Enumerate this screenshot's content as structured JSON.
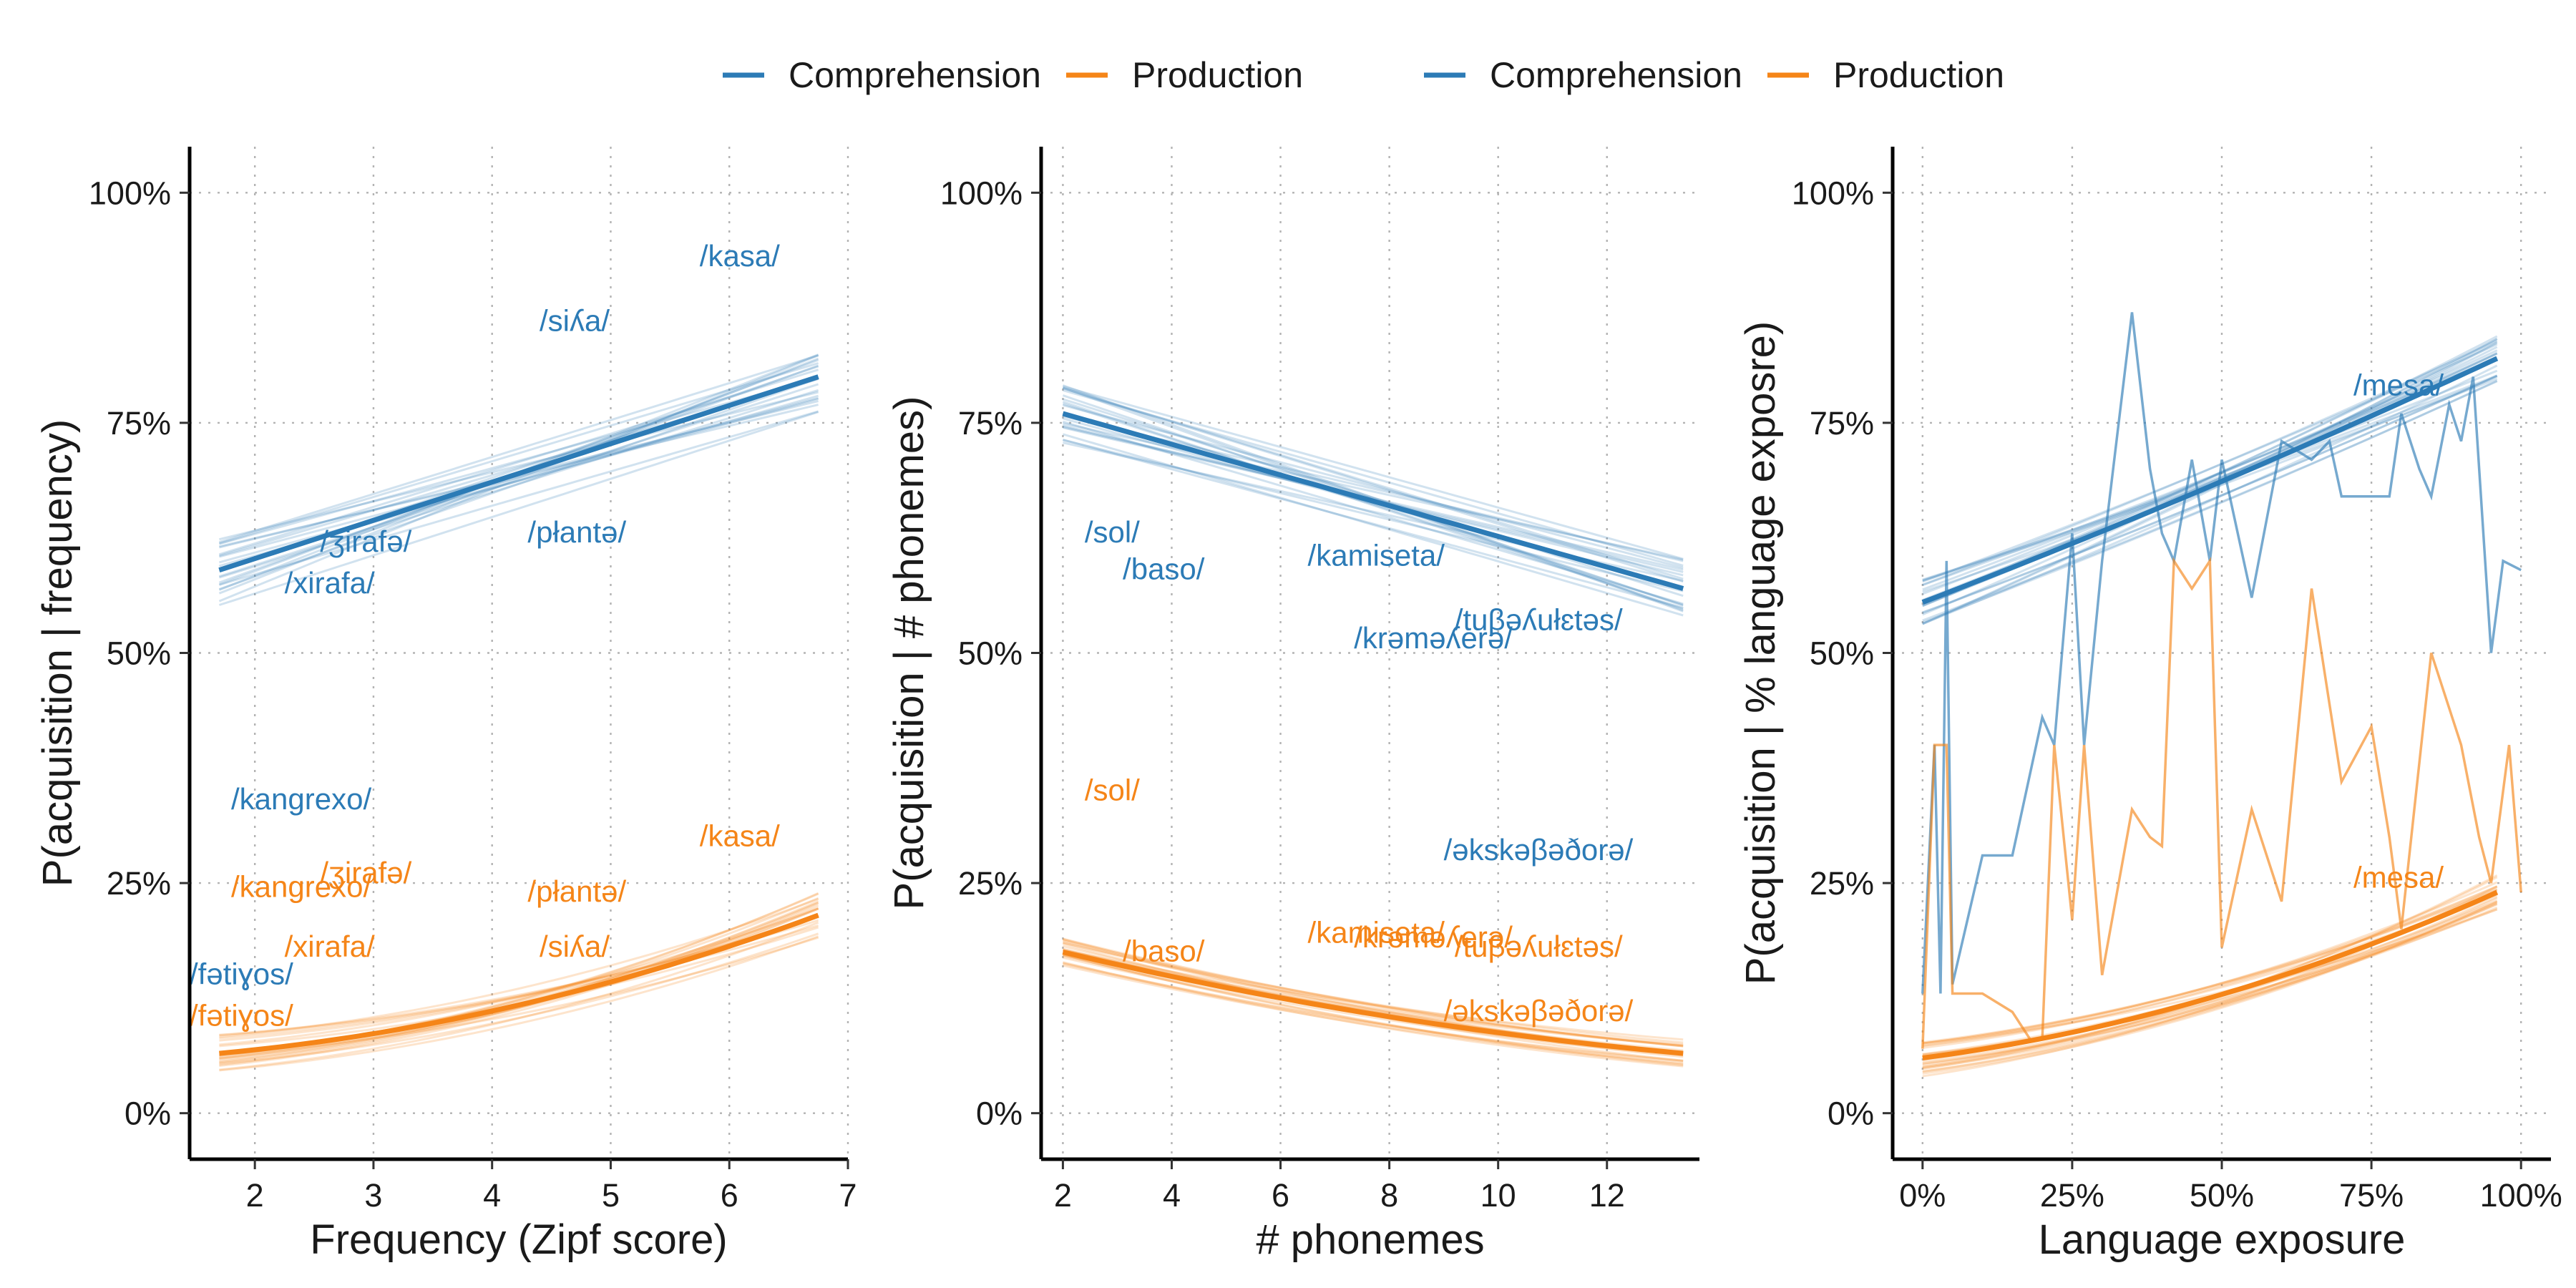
{
  "colors": {
    "comprehension": "#2C7BB6",
    "production": "#F58518"
  },
  "legend": [
    {
      "label": "Comprehension",
      "color": "#2C7BB6"
    },
    {
      "label": "Production",
      "color": "#F58518"
    },
    {
      "label": "Comprehension",
      "color": "#2C7BB6"
    },
    {
      "label": "Production",
      "color": "#F58518"
    }
  ],
  "chart_data": [
    {
      "type": "line",
      "xlabel": "Frequency (Zipf score)",
      "ylabel": "P(acquisition | frequency)",
      "xlim": [
        1.45,
        7.0
      ],
      "ylim": [
        -0.05,
        1.05
      ],
      "x_ticks": [
        2,
        3,
        4,
        5,
        6,
        7
      ],
      "x_tick_labels": [
        "2",
        "3",
        "4",
        "5",
        "6",
        "7"
      ],
      "y_ticks": [
        0,
        0.25,
        0.5,
        0.75,
        1.0
      ],
      "y_tick_labels": [
        "0%",
        "25%",
        "50%",
        "75%",
        "100%"
      ],
      "grid": true,
      "series": [
        {
          "name": "Comprehension",
          "x_range": [
            1.7,
            6.75
          ],
          "start": 0.59,
          "end": 0.8,
          "curve": 0.0,
          "bootstrap_spread": 0.08,
          "bootstrap_count": 22
        },
        {
          "name": "Production",
          "x_range": [
            1.7,
            6.75
          ],
          "start": 0.065,
          "end": 0.215,
          "curve": 0.6,
          "bootstrap_spread": 0.05,
          "bootstrap_count": 22
        }
      ],
      "word_labels": [
        {
          "text": "/kasa/",
          "x": 5.75,
          "y": 0.92,
          "series": "Comprehension"
        },
        {
          "text": "/siʎa/",
          "x": 4.4,
          "y": 0.85,
          "series": "Comprehension"
        },
        {
          "text": "/ʒirafə/",
          "x": 2.55,
          "y": 0.61,
          "series": "Comprehension"
        },
        {
          "text": "/płantə/",
          "x": 4.3,
          "y": 0.62,
          "series": "Comprehension"
        },
        {
          "text": "/xirafa/",
          "x": 2.25,
          "y": 0.565,
          "series": "Comprehension"
        },
        {
          "text": "/kangrexo/",
          "x": 1.8,
          "y": 0.33,
          "series": "Comprehension"
        },
        {
          "text": "/fətiɣos/",
          "x": 1.45,
          "y": 0.14,
          "series": "Comprehension"
        },
        {
          "text": "/kasa/",
          "x": 5.75,
          "y": 0.29,
          "series": "Production"
        },
        {
          "text": "/kangrexo/",
          "x": 1.8,
          "y": 0.235,
          "series": "Production"
        },
        {
          "text": "/ʒirafə/",
          "x": 2.55,
          "y": 0.25,
          "series": "Production"
        },
        {
          "text": "/płantə/",
          "x": 4.3,
          "y": 0.23,
          "series": "Production"
        },
        {
          "text": "/xirafa/",
          "x": 2.25,
          "y": 0.17,
          "series": "Production"
        },
        {
          "text": "/siʎa/",
          "x": 4.4,
          "y": 0.17,
          "series": "Production"
        },
        {
          "text": "/fətiɣos/",
          "x": 1.45,
          "y": 0.095,
          "series": "Production"
        }
      ]
    },
    {
      "type": "line",
      "xlabel": "# phonemes",
      "ylabel": "P(acquisition | # phonemes)",
      "xlim": [
        1.6,
        13.7
      ],
      "ylim": [
        -0.05,
        1.05
      ],
      "x_ticks": [
        2,
        4,
        6,
        8,
        10,
        12
      ],
      "x_tick_labels": [
        "2",
        "4",
        "6",
        "8",
        "10",
        "12"
      ],
      "y_ticks": [
        0,
        0.25,
        0.5,
        0.75,
        1.0
      ],
      "y_tick_labels": [
        "0%",
        "25%",
        "50%",
        "75%",
        "100%"
      ],
      "grid": true,
      "series": [
        {
          "name": "Comprehension",
          "x_range": [
            2,
            13.4
          ],
          "start": 0.76,
          "end": 0.57,
          "curve": 0.0,
          "bootstrap_spread": 0.07,
          "bootstrap_count": 22
        },
        {
          "name": "Production",
          "x_range": [
            2,
            13.4
          ],
          "start": 0.175,
          "end": 0.065,
          "curve": -0.45,
          "bootstrap_spread": 0.03,
          "bootstrap_count": 22
        }
      ],
      "word_labels": [
        {
          "text": "/sol/",
          "x": 2.4,
          "y": 0.62,
          "series": "Comprehension"
        },
        {
          "text": "/baso/",
          "x": 3.1,
          "y": 0.58,
          "series": "Comprehension"
        },
        {
          "text": "/kamiseta/",
          "x": 6.5,
          "y": 0.595,
          "series": "Comprehension"
        },
        {
          "text": "/tuβəʎułɛtəs/",
          "x": 9.2,
          "y": 0.525,
          "series": "Comprehension"
        },
        {
          "text": "/krəməʎerə/",
          "x": 7.35,
          "y": 0.505,
          "series": "Comprehension"
        },
        {
          "text": "/əkskəβəðorə/",
          "x": 9.0,
          "y": 0.275,
          "series": "Comprehension"
        },
        {
          "text": "/sol/",
          "x": 2.4,
          "y": 0.34,
          "series": "Production"
        },
        {
          "text": "/baso/",
          "x": 3.1,
          "y": 0.165,
          "series": "Production"
        },
        {
          "text": "/kamiseta/",
          "x": 6.5,
          "y": 0.185,
          "series": "Production"
        },
        {
          "text": "/krəməʎerə/",
          "x": 7.35,
          "y": 0.18,
          "series": "Production"
        },
        {
          "text": "/tuβəʎułɛtəs/",
          "x": 9.2,
          "y": 0.17,
          "series": "Production"
        },
        {
          "text": "/əkskəβəðorə/",
          "x": 9.0,
          "y": 0.1,
          "series": "Production"
        }
      ]
    },
    {
      "type": "line",
      "xlabel": "Language exposure",
      "ylabel": "P(acquisition | % language exposre)",
      "xlim": [
        -0.05,
        1.05
      ],
      "ylim": [
        -0.05,
        1.05
      ],
      "x_ticks": [
        0,
        0.25,
        0.5,
        0.75,
        1.0
      ],
      "x_tick_labels": [
        "0%",
        "25%",
        "50%",
        "75%",
        "100%"
      ],
      "y_ticks": [
        0,
        0.25,
        0.5,
        0.75,
        1.0
      ],
      "y_tick_labels": [
        "0%",
        "25%",
        "50%",
        "75%",
        "100%"
      ],
      "grid": true,
      "series": [
        {
          "name": "Comprehension",
          "x_range": [
            0,
            0.96
          ],
          "start": 0.555,
          "end": 0.82,
          "curve": 0.1,
          "bootstrap_spread": 0.05,
          "bootstrap_count": 22
        },
        {
          "name": "Production",
          "x_range": [
            0,
            0.96
          ],
          "start": 0.06,
          "end": 0.24,
          "curve": 0.55,
          "bootstrap_spread": 0.04,
          "bootstrap_count": 22
        }
      ],
      "observed": [
        {
          "name": "Comprehension",
          "x": [
            0,
            0.02,
            0.03,
            0.04,
            0.05,
            0.1,
            0.15,
            0.2,
            0.22,
            0.25,
            0.27,
            0.3,
            0.35,
            0.38,
            0.4,
            0.42,
            0.45,
            0.48,
            0.5,
            0.55,
            0.6,
            0.65,
            0.68,
            0.7,
            0.75,
            0.78,
            0.8,
            0.83,
            0.85,
            0.88,
            0.9,
            0.92,
            0.95,
            0.97,
            1.0
          ],
          "y": [
            0.13,
            0.4,
            0.13,
            0.6,
            0.14,
            0.28,
            0.28,
            0.43,
            0.4,
            0.63,
            0.4,
            0.6,
            0.87,
            0.7,
            0.63,
            0.6,
            0.71,
            0.6,
            0.71,
            0.56,
            0.73,
            0.71,
            0.73,
            0.67,
            0.67,
            0.67,
            0.76,
            0.7,
            0.67,
            0.77,
            0.73,
            0.8,
            0.5,
            0.6,
            0.59
          ]
        },
        {
          "name": "Production",
          "x": [
            0,
            0.02,
            0.04,
            0.05,
            0.1,
            0.15,
            0.18,
            0.2,
            0.22,
            0.25,
            0.27,
            0.3,
            0.35,
            0.38,
            0.4,
            0.42,
            0.45,
            0.48,
            0.5,
            0.55,
            0.6,
            0.65,
            0.7,
            0.75,
            0.78,
            0.8,
            0.85,
            0.9,
            0.93,
            0.95,
            0.98,
            1.0
          ],
          "y": [
            0.07,
            0.4,
            0.4,
            0.13,
            0.13,
            0.11,
            0.08,
            0.08,
            0.4,
            0.21,
            0.4,
            0.15,
            0.33,
            0.3,
            0.29,
            0.6,
            0.57,
            0.6,
            0.18,
            0.33,
            0.23,
            0.57,
            0.36,
            0.42,
            0.3,
            0.2,
            0.5,
            0.4,
            0.3,
            0.25,
            0.4,
            0.24
          ]
        }
      ],
      "word_labels": [
        {
          "text": "/mesa/",
          "x": 0.72,
          "y": 0.78,
          "series": "Comprehension"
        },
        {
          "text": "/mesa/",
          "x": 0.72,
          "y": 0.245,
          "series": "Production"
        }
      ]
    }
  ]
}
